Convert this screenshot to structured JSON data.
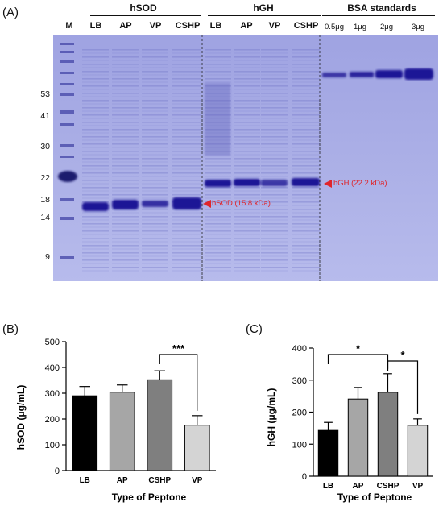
{
  "panels": {
    "a": "(A)",
    "b": "(B)",
    "c": "(C)"
  },
  "gel": {
    "marker_lane": "M",
    "groups": [
      {
        "name": "hSOD",
        "lanes": [
          "LB",
          "AP",
          "VP",
          "CSHP"
        ]
      },
      {
        "name": "hGH",
        "lanes": [
          "LB",
          "AP",
          "VP",
          "CSHP"
        ]
      },
      {
        "name": "BSA standards",
        "lanes": [
          "0.5μg",
          "1μg",
          "2μg",
          "3μg"
        ]
      }
    ],
    "mw_labels": [
      "53",
      "41",
      "30",
      "22",
      "18",
      "14",
      "9"
    ],
    "annotations": {
      "hsod": "hSOD (15.8 kDa)",
      "hgh": "hGH (22.2 kDa)"
    },
    "colors": {
      "gel_bg": "#a9ace4",
      "band": "#1e1896",
      "arrow": "#e0252b"
    }
  },
  "chart_data": [
    {
      "type": "bar",
      "categories": [
        "LB",
        "AP",
        "CSHP",
        "VP"
      ],
      "values": [
        290,
        304,
        352,
        176
      ],
      "errors": [
        36,
        28,
        35,
        37
      ],
      "bar_colors": [
        "#000000",
        "#a6a6a6",
        "#7f7f7f",
        "#d4d4d4"
      ],
      "ylabel": "hSOD (μg/mL)",
      "xlabel": "Type of Peptone",
      "ylim": [
        0,
        500
      ],
      "yticks": [
        0,
        100,
        200,
        300,
        400,
        500
      ],
      "significance": [
        {
          "from": "CSHP",
          "to": "VP",
          "label": "***"
        }
      ]
    },
    {
      "type": "bar",
      "categories": [
        "LB",
        "AP",
        "CSHP",
        "VP"
      ],
      "values": [
        143,
        241,
        262,
        159
      ],
      "errors": [
        25,
        36,
        58,
        20
      ],
      "bar_colors": [
        "#000000",
        "#a6a6a6",
        "#7f7f7f",
        "#d4d4d4"
      ],
      "ylabel": "hGH (μg/mL)",
      "xlabel": "Type of Peptone",
      "ylim": [
        0,
        400
      ],
      "yticks": [
        0,
        100,
        200,
        300,
        400
      ],
      "significance": [
        {
          "from": "LB",
          "to": "CSHP",
          "label": "*"
        },
        {
          "from": "CSHP",
          "to": "VP",
          "label": "*"
        }
      ]
    }
  ]
}
